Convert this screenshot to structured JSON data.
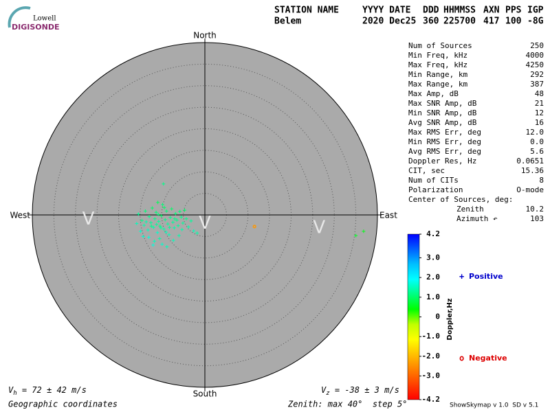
{
  "chart_data": {
    "type": "skymap",
    "logo": {
      "top": "Lowell",
      "bottom": "DIGISONDE"
    },
    "header": [
      [
        "STATION NAME",
        "Belem"
      ],
      [
        "YYYY DATE",
        "2020 Dec25"
      ],
      [
        "DDD",
        "360"
      ],
      [
        "HHMMSS",
        "225700"
      ],
      [
        "AXN",
        "417"
      ],
      [
        "PPS",
        "100"
      ],
      [
        "IGP",
        "-8G"
      ]
    ],
    "directions": {
      "north": "North",
      "south": "South",
      "east": "East",
      "west": "West"
    },
    "rlim": [
      0,
      40
    ],
    "rticks": [
      5,
      10,
      15,
      20,
      25,
      30,
      35,
      40
    ],
    "markers": [
      {
        "label": "V",
        "x": -27,
        "y": -1
      },
      {
        "label": "V",
        "x": 0,
        "y": -2
      },
      {
        "label": "V",
        "x": 26.5,
        "y": -3
      }
    ],
    "series": [
      {
        "name": "Positive",
        "marker": "+",
        "color": "#0000cc",
        "x": [
          -15.4,
          -14.6,
          -14.1,
          -13.8,
          -13.2,
          -12.9,
          -12.5,
          -12.2,
          -11.9,
          -11.6,
          -11.3,
          -11.0,
          -10.7,
          -10.4,
          -10.1,
          -9.8,
          -9.5,
          -9.2,
          -8.9,
          -8.6,
          -8.3,
          -8.0,
          -7.7,
          -7.4,
          -7.1,
          -6.8,
          -6.5,
          -6.2,
          -5.8,
          -5.5,
          -5.1,
          -4.7,
          -4.3,
          -3.8,
          -3.2,
          -2.6,
          -1.8,
          -14.9,
          -13.0,
          -11.7,
          -10.5,
          -9.9,
          -8.8,
          -12.0,
          -10.9,
          -9.4,
          -7.3,
          -6.0,
          -15.8,
          -9.6,
          -10.2,
          -11.2,
          -12.4,
          -13.6,
          -8.2,
          -7.0,
          -9.0,
          -10.8,
          -5.3,
          -14.3,
          35.0,
          36.8
        ],
        "y": [
          0.2,
          -1.3,
          -2.4,
          0.9,
          -3.5,
          -0.4,
          -1.8,
          1.6,
          -2.9,
          -0.9,
          0.6,
          -4.1,
          -1.5,
          -2.6,
          -0.2,
          2.4,
          -3.3,
          -1.1,
          0.9,
          -2.1,
          -4.6,
          -0.6,
          1.4,
          -1.7,
          -3.0,
          0.3,
          -1.2,
          -2.5,
          0.8,
          -0.5,
          -1.9,
          1.1,
          -0.9,
          -2.8,
          -1.4,
          -3.7,
          -4.2,
          -3.8,
          -5.2,
          -6.1,
          -5.5,
          -6.8,
          -7.4,
          -7.0,
          2.9,
          1.7,
          -5.9,
          -4.8,
          -2.0,
          7.2,
          -3.0,
          -2.2,
          -2.6,
          -1.6,
          -2.9,
          -0.9,
          -4.0,
          0.1,
          -3.4,
          -5.0,
          -4.8,
          -3.8
        ],
        "doppler": [
          1.3,
          1.2,
          1.4,
          1.1,
          1.5,
          1.2,
          1.3,
          1.0,
          1.4,
          1.2,
          1.1,
          1.6,
          1.3,
          1.2,
          1.0,
          1.1,
          1.4,
          1.2,
          1.1,
          1.3,
          1.5,
          1.2,
          1.0,
          1.3,
          1.4,
          1.1,
          1.2,
          1.3,
          1.1,
          1.2,
          1.3,
          1.0,
          1.2,
          1.4,
          1.3,
          1.5,
          1.4,
          1.6,
          1.7,
          1.5,
          1.4,
          1.6,
          1.5,
          1.7,
          0.9,
          1.0,
          1.5,
          1.4,
          1.5,
          1.2,
          1.3,
          1.3,
          1.2,
          1.4,
          1.3,
          1.2,
          1.5,
          1.1,
          1.4,
          1.6,
          0.6,
          0.5
        ]
      },
      {
        "name": "Negative",
        "marker": "o",
        "color": "#dd0000",
        "x": [
          11.5
        ],
        "y": [
          -2.7
        ],
        "doppler": [
          -2.4
        ]
      }
    ],
    "colorbar": {
      "label": "Doppler,Hz",
      "zlim": [
        4.2,
        -4.2
      ],
      "colormap": [
        "#0000ff",
        "#0060ff",
        "#00c0ff",
        "#00ffff",
        "#00ff80",
        "#00ff00",
        "#c0ff00",
        "#ffff00",
        "#ffc000",
        "#ff8000",
        "#ff4000",
        "#ff0000"
      ],
      "ticks": [
        4.2,
        {
          "value": 3,
          "label": "3.0"
        },
        {
          "value": 2,
          "label": "2.0"
        },
        {
          "value": 1,
          "label": "1.0"
        },
        0,
        {
          "value": -1,
          "label": "-1.0"
        },
        {
          "value": -2,
          "label": "-2.0"
        },
        {
          "value": -3,
          "label": "-3.0"
        },
        -4.2
      ]
    },
    "stats": [
      [
        "Num of Sources",
        "250"
      ],
      [
        "Min Freq, kHz",
        "4000"
      ],
      [
        "Max Freq, kHz",
        "4250"
      ],
      [
        "Min Range, km",
        "292"
      ],
      [
        "Max Range, km",
        "387"
      ],
      [
        "Max Amp, dB",
        "48"
      ],
      [
        "Max SNR Amp, dB",
        "21"
      ],
      [
        "Min SNR Amp, dB",
        "12"
      ],
      [
        "Avg SNR Amp, dB",
        "16"
      ],
      [
        "Max RMS Err, deg",
        "12.0"
      ],
      [
        "Min RMS Err, deg",
        "0.0"
      ],
      [
        "Avg RMS Err, deg",
        "5.6"
      ],
      [
        "Doppler Res, Hz",
        "0.0651"
      ],
      [
        "CIT, sec",
        "15.36"
      ],
      [
        "Num of CITs",
        "8"
      ],
      [
        "Polarization",
        "O-mode"
      ]
    ],
    "center": {
      "title": "Center of Sources, deg:",
      "rows": [
        [
          "Zenith",
          "10.2"
        ],
        [
          "Azimuth ↶",
          "103"
        ]
      ]
    },
    "vh": {
      "symbol": "V",
      "sub": "h",
      "text": " = 72 ± 42 m/s"
    },
    "vz": {
      "symbol": "V",
      "sub": "z",
      "text": " = -38 ± 3 m/s"
    },
    "footer": {
      "left": "Geographic coordinates",
      "middle": "Zenith: max 40°  step 5°",
      "right": "ShowSkymap v 1.0  SD v 5.1"
    }
  }
}
